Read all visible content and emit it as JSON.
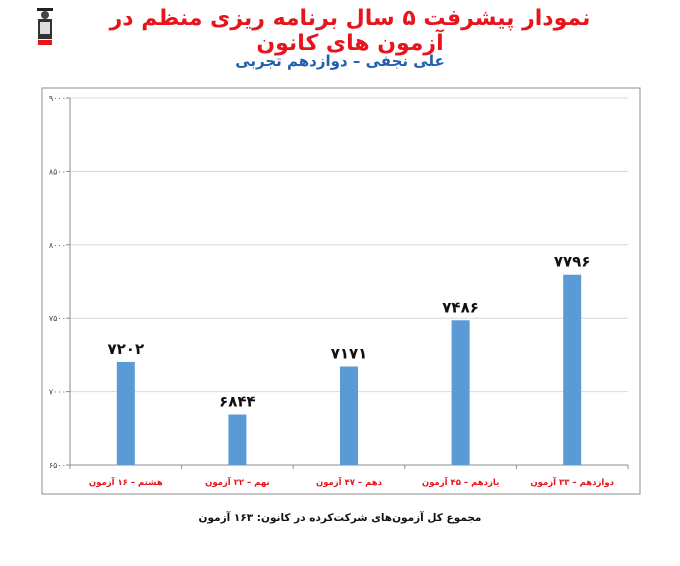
{
  "header": {
    "title": "نمودار پیشرفت ۵ سال برنامه ریزی منظم در آزمون های کانون",
    "subtitle": "علی نجفی – دوازدهم تجربی",
    "logo_icon": "graduate-logo-icon"
  },
  "chart_data": {
    "type": "bar",
    "title": "",
    "xlabel": "",
    "ylabel": "",
    "categories": [
      "هشتم – ۱۶ آزمون",
      "نهم – ۲۲ آزمون",
      "دهم – ۴۷ آزمون",
      "یازدهم – ۴۵ آزمون",
      "دوازدهم – ۳۳ آزمون"
    ],
    "values": [
      7202,
      6844,
      7171,
      7486,
      7796
    ],
    "data_labels": [
      "۷۲۰۲",
      "۶۸۴۴",
      "۷۱۷۱",
      "۷۴۸۶",
      "۷۷۹۶"
    ],
    "ylim": [
      6500,
      9000
    ],
    "yticks": [
      6500,
      7000,
      7500,
      8000,
      8500,
      9000
    ],
    "ytick_labels": [
      "۶۵۰۰",
      "۷۰۰۰",
      "۷۵۰۰",
      "۸۰۰۰",
      "۸۵۰۰",
      "۹۰۰۰"
    ],
    "grid": true,
    "legend": "none",
    "bar_color": "#5b9bd5",
    "category_label_color": "#e8141c"
  },
  "footer": {
    "total_text": "مجموع کل آزمون‌های شرکت‌کرده در کانون: ۱۶۳ آزمون"
  }
}
